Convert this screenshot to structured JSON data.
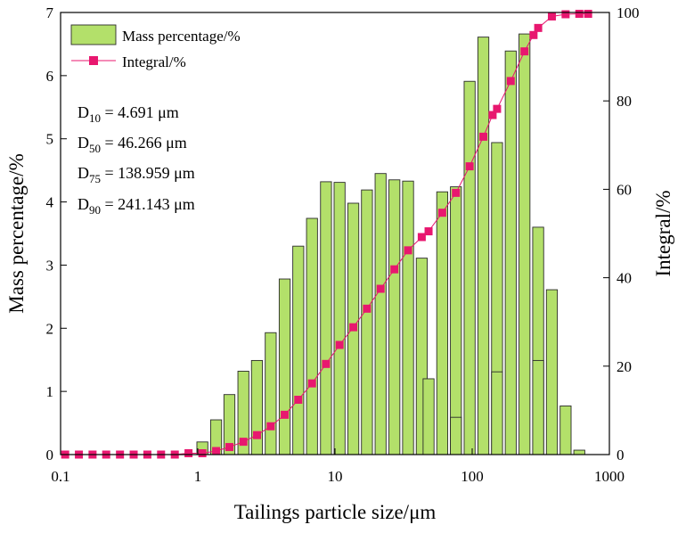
{
  "chart_data": {
    "type": "bar+line",
    "x_scale": "log",
    "xlim": [
      0.1,
      1000
    ],
    "x_ticks": [
      0.1,
      1,
      10,
      100,
      1000
    ],
    "x_tick_labels": [
      "0.1",
      "1",
      "10",
      "100",
      "1000"
    ],
    "xlabel": "Tailings particle size/μm",
    "ylabel_left": "Mass percentage/%",
    "ylim_left": [
      0,
      7
    ],
    "y_ticks_left": [
      "0",
      "1",
      "2",
      "3",
      "4",
      "5",
      "6",
      "7"
    ],
    "ylabel_right": "Integral/%",
    "ylim_right": [
      0,
      100
    ],
    "y_ticks_right": [
      "0",
      "20",
      "40",
      "60",
      "80",
      "100"
    ],
    "legend": {
      "position": "top-left",
      "bar_label": "Mass percentage/%",
      "line_label": "Integral/%"
    },
    "statistics": [
      {
        "main": "D",
        "sub": "10",
        "rest": " = 4.691 μm"
      },
      {
        "main": "D",
        "sub": "50",
        "rest": " = 46.266 μm"
      },
      {
        "main": "D",
        "sub": "75",
        "rest": " = 138.959 μm"
      },
      {
        "main": "D",
        "sub": "90",
        "rest": " = 241.143 μm"
      }
    ],
    "series": [
      {
        "name": "Mass percentage/%",
        "type": "bar",
        "axis": "left",
        "points": [
          {
            "x": 1.08,
            "y": 0.2
          },
          {
            "x": 1.36,
            "y": 0.55
          },
          {
            "x": 1.7,
            "y": 0.95
          },
          {
            "x": 2.15,
            "y": 1.32
          },
          {
            "x": 2.7,
            "y": 1.49
          },
          {
            "x": 3.4,
            "y": 1.93
          },
          {
            "x": 4.3,
            "y": 2.78
          },
          {
            "x": 5.4,
            "y": 3.3
          },
          {
            "x": 6.8,
            "y": 3.74
          },
          {
            "x": 8.6,
            "y": 4.32
          },
          {
            "x": 10.8,
            "y": 4.31
          },
          {
            "x": 13.6,
            "y": 3.98
          },
          {
            "x": 17.1,
            "y": 4.19
          },
          {
            "x": 21.5,
            "y": 4.45
          },
          {
            "x": 27.1,
            "y": 4.35
          },
          {
            "x": 34.1,
            "y": 4.33
          },
          {
            "x": 42.9,
            "y": 3.11
          },
          {
            "x": 48.1,
            "y": 1.2
          },
          {
            "x": 60.5,
            "y": 4.16
          },
          {
            "x": 76.1,
            "y": 4.24
          },
          {
            "x": 76.1,
            "y": 0.59
          },
          {
            "x": 95.8,
            "y": 5.91
          },
          {
            "x": 120.6,
            "y": 6.61
          },
          {
            "x": 151.8,
            "y": 4.94
          },
          {
            "x": 151.8,
            "y": 1.31
          },
          {
            "x": 191,
            "y": 6.39
          },
          {
            "x": 240.5,
            "y": 6.66
          },
          {
            "x": 302.7,
            "y": 3.6
          },
          {
            "x": 302.7,
            "y": 1.49
          },
          {
            "x": 381,
            "y": 2.61
          },
          {
            "x": 479.6,
            "y": 0.77
          },
          {
            "x": 603.7,
            "y": 0.07
          }
        ]
      },
      {
        "name": "Integral/%",
        "type": "line",
        "axis": "right",
        "points": [
          {
            "x": 0.108,
            "y": 0
          },
          {
            "x": 0.136,
            "y": 0
          },
          {
            "x": 0.171,
            "y": 0
          },
          {
            "x": 0.215,
            "y": 0
          },
          {
            "x": 0.271,
            "y": 0
          },
          {
            "x": 0.341,
            "y": 0
          },
          {
            "x": 0.429,
            "y": 0
          },
          {
            "x": 0.54,
            "y": 0
          },
          {
            "x": 0.68,
            "y": 0
          },
          {
            "x": 0.856,
            "y": 0.3
          },
          {
            "x": 1.08,
            "y": 0.3
          },
          {
            "x": 1.36,
            "y": 0.8
          },
          {
            "x": 1.7,
            "y": 1.7
          },
          {
            "x": 2.15,
            "y": 2.9
          },
          {
            "x": 2.7,
            "y": 4.4
          },
          {
            "x": 3.4,
            "y": 6.4
          },
          {
            "x": 4.3,
            "y": 9.0
          },
          {
            "x": 5.4,
            "y": 12.4
          },
          {
            "x": 6.8,
            "y": 16.1
          },
          {
            "x": 8.6,
            "y": 20.5
          },
          {
            "x": 10.8,
            "y": 24.8
          },
          {
            "x": 13.6,
            "y": 28.8
          },
          {
            "x": 17.1,
            "y": 33.0
          },
          {
            "x": 21.5,
            "y": 37.5
          },
          {
            "x": 27.1,
            "y": 41.9
          },
          {
            "x": 34.1,
            "y": 46.2
          },
          {
            "x": 42.9,
            "y": 49.2
          },
          {
            "x": 48.1,
            "y": 50.5
          },
          {
            "x": 60.5,
            "y": 54.7
          },
          {
            "x": 76.1,
            "y": 59.2
          },
          {
            "x": 95.8,
            "y": 65.2
          },
          {
            "x": 120.6,
            "y": 71.9
          },
          {
            "x": 140.9,
            "y": 76.8
          },
          {
            "x": 151.8,
            "y": 78.2
          },
          {
            "x": 191,
            "y": 84.5
          },
          {
            "x": 240.5,
            "y": 91.2
          },
          {
            "x": 280,
            "y": 94.9
          },
          {
            "x": 302.7,
            "y": 96.5
          },
          {
            "x": 381,
            "y": 99.1
          },
          {
            "x": 479.6,
            "y": 99.6
          },
          {
            "x": 603.7,
            "y": 99.7
          },
          {
            "x": 700,
            "y": 99.7
          }
        ]
      }
    ]
  }
}
